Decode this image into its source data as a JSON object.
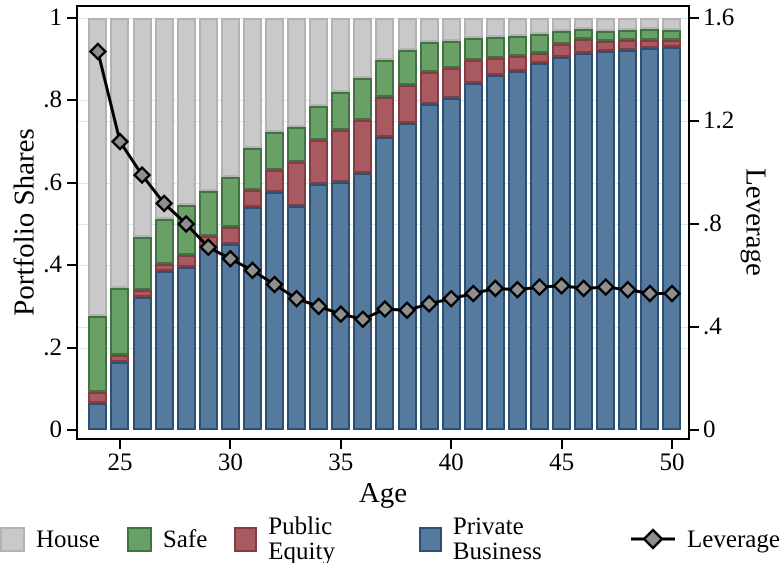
{
  "figure": {
    "left_axis": {
      "title": "Portfolio Shares"
    },
    "right_axis": {
      "title": "Leverage"
    },
    "x_axis": {
      "title": "Age"
    },
    "legend": [
      {
        "label": "House",
        "type": "swatch",
        "color": "#c9c9c9",
        "border": "#b3b3b3"
      },
      {
        "label": "Safe",
        "type": "swatch",
        "color": "#68a066",
        "border": "#3f7442"
      },
      {
        "label": "Public Equity",
        "type": "swatch",
        "color": "#a85a60",
        "border": "#823c44"
      },
      {
        "label": "Private Business",
        "type": "swatch",
        "color": "#567a9e",
        "border": "#2d4f72"
      },
      {
        "label": "Leverage",
        "type": "line-marker",
        "line_color": "#000000",
        "marker_fill": "#8f8f8f"
      }
    ]
  },
  "chart_data": {
    "type": "bar",
    "subtype": "stacked-bars-with-line-overlay",
    "x": [
      24,
      25,
      26,
      27,
      28,
      29,
      30,
      31,
      32,
      33,
      34,
      35,
      36,
      37,
      38,
      39,
      40,
      41,
      42,
      43,
      44,
      45,
      46,
      47,
      48,
      49,
      50
    ],
    "x_ticks": [
      25,
      30,
      35,
      40,
      45,
      50
    ],
    "xlabel": "Age",
    "left_axis": {
      "label": "Portfolio Shares",
      "ylim": [
        0,
        1
      ],
      "tick_labels": [
        "0",
        ".2",
        ".4",
        ".6",
        ".8",
        "1"
      ],
      "tick_values": [
        0,
        0.2,
        0.4,
        0.6,
        0.8,
        1
      ]
    },
    "right_axis": {
      "label": "Leverage",
      "ylim": [
        0,
        1.6
      ],
      "tick_labels": [
        "0",
        ".4",
        ".8",
        "1.2",
        "1.6"
      ],
      "tick_values": [
        0,
        0.4,
        0.8,
        1.2,
        1.6
      ]
    },
    "grid": true,
    "legend_position": "bottom",
    "series": [
      {
        "name": "Private Business",
        "type": "bar",
        "axis": "left",
        "stack_order": 1,
        "color": "#567a9e",
        "border": "#2d4f72",
        "values": [
          0.065,
          0.165,
          0.322,
          0.385,
          0.396,
          0.44,
          0.451,
          0.542,
          0.578,
          0.544,
          0.597,
          0.603,
          0.623,
          0.712,
          0.744,
          0.791,
          0.805,
          0.843,
          0.862,
          0.872,
          0.891,
          0.906,
          0.916,
          0.921,
          0.922,
          0.926,
          0.929
        ]
      },
      {
        "name": "Public Equity",
        "type": "bar",
        "axis": "left",
        "stack_order": 2,
        "color": "#a85a60",
        "border": "#823c44",
        "values": [
          0.027,
          0.018,
          0.018,
          0.017,
          0.028,
          0.03,
          0.042,
          0.041,
          0.054,
          0.106,
          0.108,
          0.125,
          0.129,
          0.097,
          0.093,
          0.079,
          0.073,
          0.054,
          0.04,
          0.036,
          0.025,
          0.032,
          0.032,
          0.024,
          0.025,
          0.021,
          0.018
        ]
      },
      {
        "name": "Safe",
        "type": "bar",
        "axis": "left",
        "stack_order": 3,
        "color": "#68a066",
        "border": "#3f7442",
        "values": [
          0.185,
          0.162,
          0.128,
          0.11,
          0.121,
          0.11,
          0.122,
          0.102,
          0.091,
          0.086,
          0.082,
          0.093,
          0.102,
          0.089,
          0.085,
          0.072,
          0.066,
          0.054,
          0.051,
          0.048,
          0.045,
          0.031,
          0.025,
          0.024,
          0.023,
          0.027,
          0.024
        ]
      },
      {
        "name": "House",
        "type": "bar",
        "axis": "left",
        "stack_order": 4,
        "color": "#c9c9c9",
        "border": "#b3b3b3",
        "values": [
          0.723,
          0.655,
          0.532,
          0.488,
          0.455,
          0.42,
          0.385,
          0.315,
          0.277,
          0.264,
          0.213,
          0.179,
          0.146,
          0.102,
          0.078,
          0.058,
          0.056,
          0.049,
          0.047,
          0.044,
          0.039,
          0.031,
          0.027,
          0.031,
          0.03,
          0.026,
          0.029
        ]
      },
      {
        "name": "Leverage",
        "type": "line",
        "axis": "right",
        "color": "#000000",
        "marker": "diamond",
        "marker_fill": "#8f8f8f",
        "values": [
          1.47,
          1.12,
          0.99,
          0.88,
          0.8,
          0.71,
          0.665,
          0.62,
          0.565,
          0.51,
          0.48,
          0.45,
          0.43,
          0.47,
          0.465,
          0.49,
          0.51,
          0.53,
          0.55,
          0.545,
          0.555,
          0.56,
          0.55,
          0.555,
          0.545,
          0.53,
          0.53
        ]
      }
    ]
  }
}
